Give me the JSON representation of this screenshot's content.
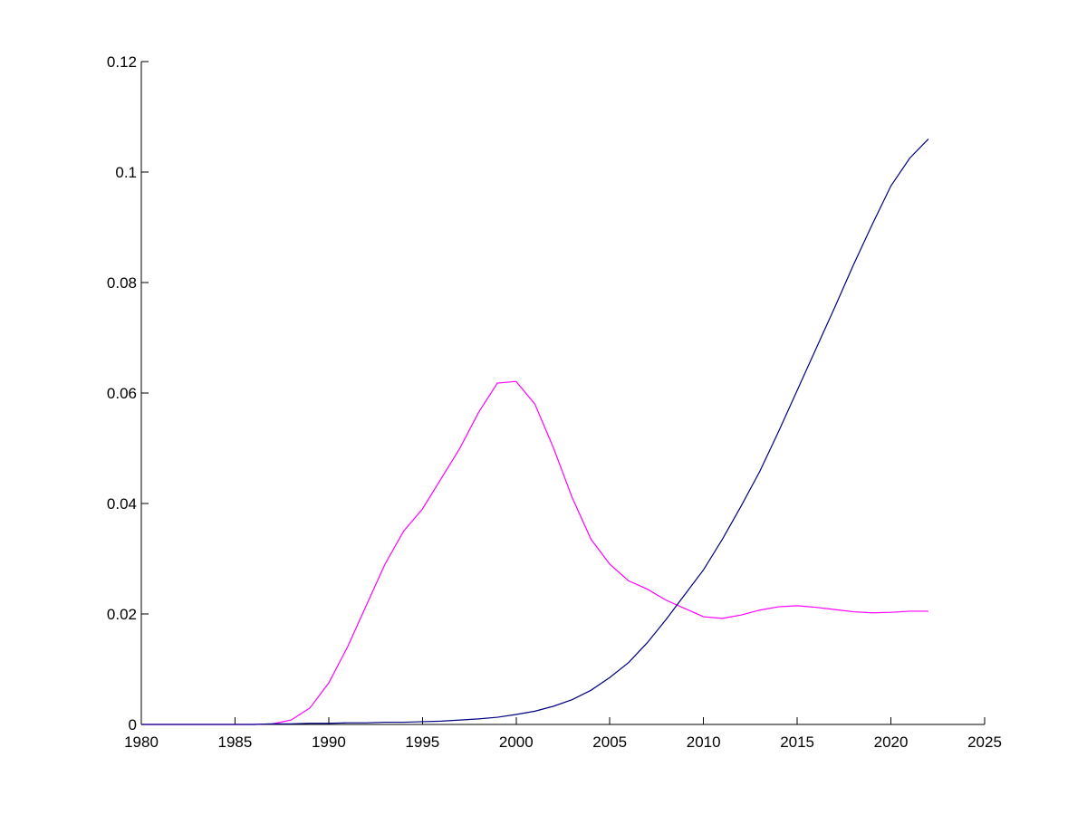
{
  "chart_data": {
    "type": "line",
    "title": "",
    "xlabel": "",
    "ylabel": "",
    "xlim": [
      1980,
      2025
    ],
    "ylim": [
      0,
      0.12
    ],
    "xticks": [
      1980,
      1985,
      1990,
      1995,
      2000,
      2005,
      2010,
      2015,
      2020,
      2025
    ],
    "yticks": [
      0,
      0.02,
      0.04,
      0.06,
      0.08,
      0.1,
      0.12
    ],
    "xtick_labels": [
      "1980",
      "1985",
      "1990",
      "1995",
      "2000",
      "2005",
      "2010",
      "2015",
      "2020",
      "2025"
    ],
    "ytick_labels": [
      "0",
      "0.02",
      "0.04",
      "0.06",
      "0.08",
      "0.1",
      "0.12"
    ],
    "grid": false,
    "legend": "none",
    "x": [
      1980,
      1981,
      1982,
      1983,
      1984,
      1985,
      1986,
      1987,
      1988,
      1989,
      1990,
      1991,
      1992,
      1993,
      1994,
      1995,
      1996,
      1997,
      1998,
      1999,
      2000,
      2001,
      2002,
      2003,
      2004,
      2005,
      2006,
      2007,
      2008,
      2009,
      2010,
      2011,
      2012,
      2013,
      2014,
      2015,
      2016,
      2017,
      2018,
      2019,
      2020,
      2021,
      2022
    ],
    "series": [
      {
        "color": "#ff00ff",
        "values": [
          0,
          0,
          0,
          0,
          0,
          0,
          0,
          0.0001,
          0.0008,
          0.003,
          0.0075,
          0.014,
          0.0215,
          0.029,
          0.035,
          0.039,
          0.0445,
          0.05,
          0.0565,
          0.0618,
          0.0621,
          0.058,
          0.05,
          0.041,
          0.0335,
          0.029,
          0.026,
          0.0245,
          0.0225,
          0.021,
          0.0195,
          0.0192,
          0.0198,
          0.0207,
          0.0213,
          0.0215,
          0.0212,
          0.0208,
          0.0204,
          0.0202,
          0.0203,
          0.0205,
          0.0205
        ]
      },
      {
        "color": "#000080",
        "values": [
          0,
          0,
          0,
          0,
          0,
          0,
          0,
          0.0001,
          0.0001,
          0.0002,
          0.0002,
          0.0003,
          0.0003,
          0.0004,
          0.0004,
          0.0005,
          0.0006,
          0.0008,
          0.001,
          0.0013,
          0.0018,
          0.0024,
          0.0033,
          0.0045,
          0.0062,
          0.0085,
          0.0112,
          0.0148,
          0.019,
          0.0235,
          0.028,
          0.0335,
          0.0395,
          0.0458,
          0.053,
          0.0605,
          0.068,
          0.0755,
          0.0832,
          0.0905,
          0.0975,
          0.1025,
          0.106
        ]
      }
    ]
  }
}
